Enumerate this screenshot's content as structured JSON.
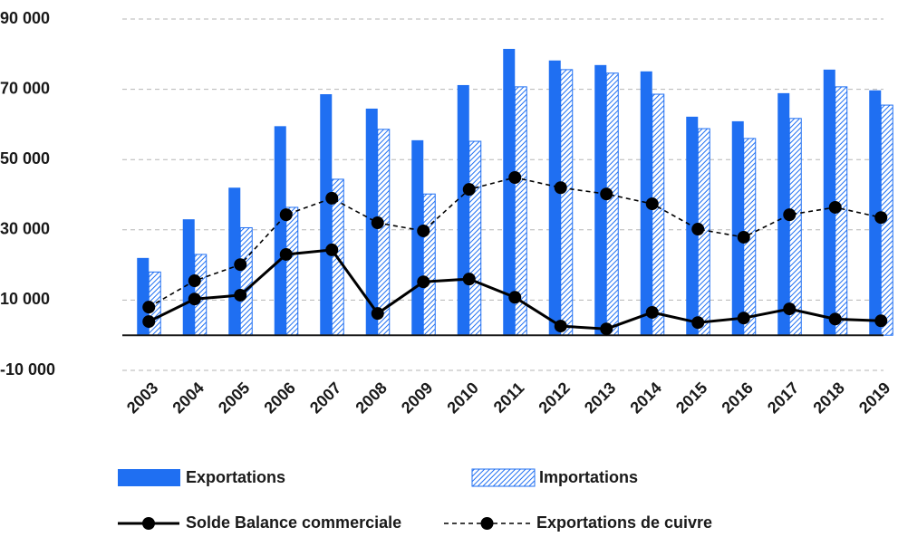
{
  "chart_data": {
    "type": "bar",
    "categories": [
      "2003",
      "2004",
      "2005",
      "2006",
      "2007",
      "2008",
      "2009",
      "2010",
      "2011",
      "2012",
      "2013",
      "2014",
      "2015",
      "2016",
      "2017",
      "2018",
      "2019"
    ],
    "series": [
      {
        "name": "Exportations",
        "type": "bar",
        "color": "#1f6ff2",
        "values": [
          22000,
          33000,
          42000,
          59500,
          68600,
          64500,
          55500,
          71200,
          81500,
          78200,
          76900,
          75100,
          62200,
          60900,
          68900,
          75600,
          69700
        ]
      },
      {
        "name": "Importations",
        "type": "bar",
        "color": "#1f6ff2",
        "pattern": "hatch",
        "values": [
          18000,
          23000,
          30600,
          36400,
          44400,
          58600,
          40200,
          55200,
          70700,
          75600,
          74600,
          68600,
          58800,
          56000,
          61700,
          70700,
          65500
        ]
      },
      {
        "name": "Solde Balance commerciale",
        "type": "line",
        "color": "#000000",
        "values": [
          3900,
          10300,
          11400,
          23000,
          24300,
          6200,
          15200,
          16000,
          10800,
          2600,
          1800,
          6500,
          3600,
          4900,
          7500,
          4600,
          4100
        ]
      },
      {
        "name": "Exportations de cuivre",
        "type": "line",
        "color": "#000000",
        "dashed": true,
        "values": [
          8000,
          15500,
          20100,
          34300,
          39000,
          32000,
          29700,
          41500,
          44900,
          42000,
          40200,
          37400,
          30200,
          27900,
          34300,
          36400,
          33500
        ]
      }
    ],
    "ylim": [
      -10000,
      90000
    ],
    "yticks": [
      {
        "value": -10000,
        "label": "-10 000"
      },
      {
        "value": 10000,
        "label": "10 000"
      },
      {
        "value": 30000,
        "label": "30 000"
      },
      {
        "value": 50000,
        "label": "50 000"
      },
      {
        "value": 70000,
        "label": "70 000"
      },
      {
        "value": 90000,
        "label": "90 000"
      }
    ],
    "grid": true
  }
}
